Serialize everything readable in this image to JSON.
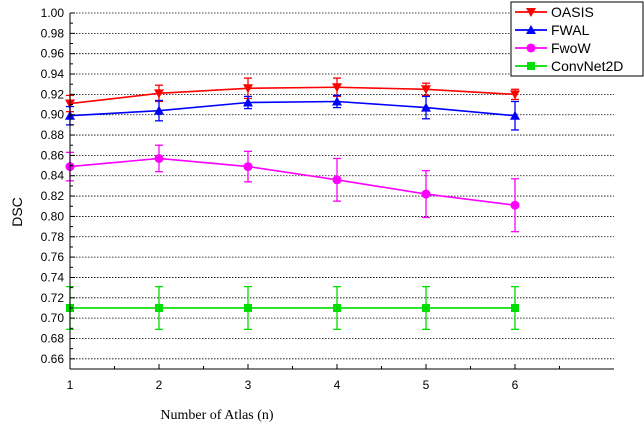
{
  "chart_data": {
    "type": "line",
    "xlabel": "Number of Atlas (n)",
    "ylabel": "DSC",
    "x": [
      1,
      2,
      3,
      4,
      5,
      6
    ],
    "xlim": [
      1,
      6.5
    ],
    "ylim": [
      0.65,
      1.0
    ],
    "x_ticks": [
      "1",
      "2",
      "3",
      "4",
      "5",
      "6"
    ],
    "y_ticks": [
      "0.66",
      "0.68",
      "0.70",
      "0.72",
      "0.74",
      "0.76",
      "0.78",
      "0.80",
      "0.82",
      "0.84",
      "0.86",
      "0.88",
      "0.90",
      "0.92",
      "0.94",
      "0.96",
      "0.98",
      "1.00"
    ],
    "grid": "horizontal dotted",
    "legend_position": "top-right",
    "series": [
      {
        "name": "OASIS",
        "color": "#ff0000",
        "marker": "triangle-down",
        "values": [
          0.911,
          0.921,
          0.926,
          0.927,
          0.925,
          0.92
        ],
        "errors": [
          0.008,
          0.008,
          0.01,
          0.009,
          0.006,
          0.005
        ]
      },
      {
        "name": "FWAL",
        "color": "#0000ff",
        "marker": "triangle-up",
        "values": [
          0.899,
          0.904,
          0.912,
          0.913,
          0.907,
          0.899
        ],
        "errors": [
          0.009,
          0.01,
          0.006,
          0.006,
          0.011,
          0.014
        ]
      },
      {
        "name": "FwoW",
        "color": "#ff00ff",
        "marker": "circle",
        "values": [
          0.849,
          0.857,
          0.849,
          0.836,
          0.822,
          0.811
        ],
        "errors": [
          0.014,
          0.013,
          0.015,
          0.021,
          0.023,
          0.026
        ]
      },
      {
        "name": "ConvNet2D",
        "color": "#00dd00",
        "marker": "square",
        "values": [
          0.71,
          0.71,
          0.71,
          0.71,
          0.71,
          0.71
        ],
        "errors": [
          0.021,
          0.021,
          0.021,
          0.021,
          0.021,
          0.021
        ]
      }
    ]
  }
}
